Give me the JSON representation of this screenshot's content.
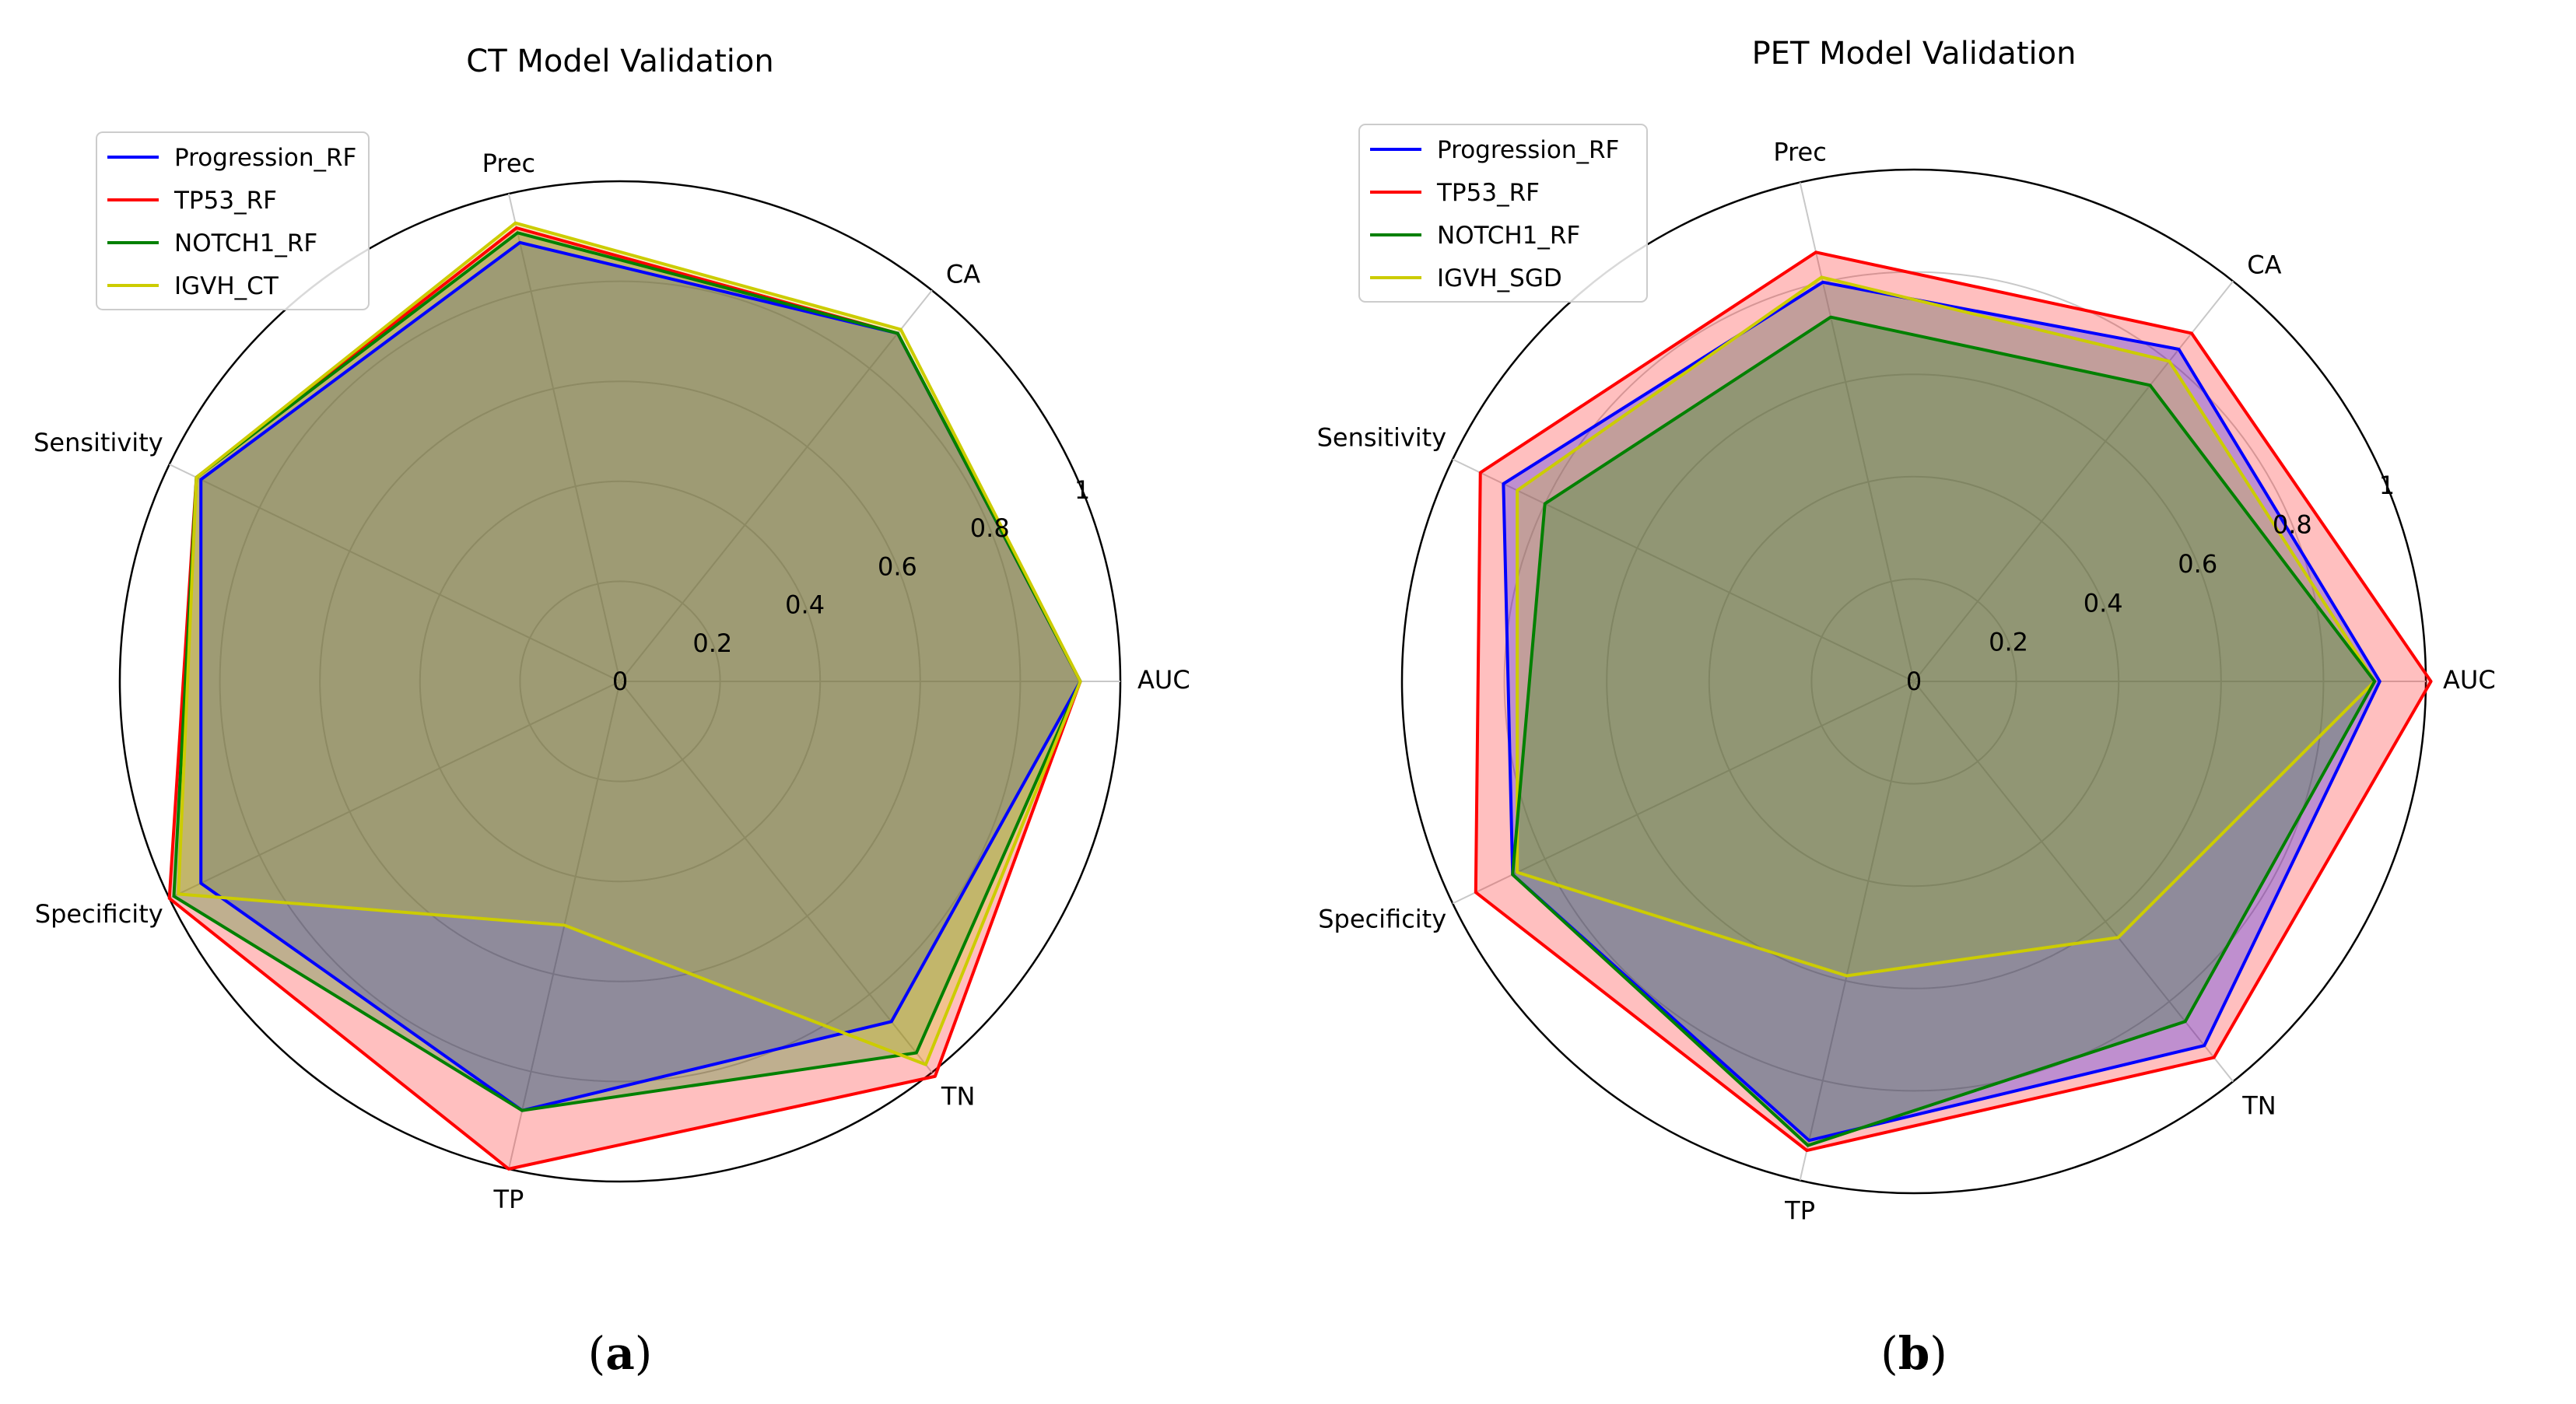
{
  "chart_data": [
    {
      "type": "radar",
      "title": "CT Model Validation",
      "axes": [
        "AUC",
        "CA",
        "Prec",
        "Sensitivity",
        "Specificity",
        "TP",
        "TN"
      ],
      "rlim": [
        0,
        1
      ],
      "radial_ticks": [
        0,
        0.2,
        0.4,
        0.6,
        0.8,
        1
      ],
      "radial_tick_labels": [
        "0",
        "0.2",
        "0.4",
        "0.6",
        "0.8",
        "1"
      ],
      "legend_location": "upper-left",
      "subfigure_label": {
        "open": "(",
        "letter": "a",
        "close": ")"
      },
      "series": [
        {
          "name": "Progression_RF",
          "color": "#0000ff",
          "values": [
            0.92,
            0.89,
            0.9,
            0.93,
            0.93,
            0.88,
            0.87
          ]
        },
        {
          "name": "TP53_RF",
          "color": "#ff0000",
          "values": [
            0.92,
            0.89,
            0.93,
            0.94,
            1.0,
            1.0,
            1.01
          ]
        },
        {
          "name": "NOTCH1_RF",
          "color": "#008000",
          "values": [
            0.92,
            0.89,
            0.92,
            0.94,
            0.99,
            0.88,
            0.95
          ]
        },
        {
          "name": "IGVH_CT",
          "color": "#cccc00",
          "values": [
            0.92,
            0.9,
            0.94,
            0.94,
            0.98,
            0.5,
            0.98
          ]
        }
      ]
    },
    {
      "type": "radar",
      "title": "PET Model Validation",
      "axes": [
        "AUC",
        "CA",
        "Prec",
        "Sensitivity",
        "Specificity",
        "TP",
        "TN"
      ],
      "rlim": [
        0,
        1
      ],
      "radial_ticks": [
        0,
        0.2,
        0.4,
        0.6,
        0.8,
        1
      ],
      "radial_tick_labels": [
        "0",
        "0.2",
        "0.4",
        "0.6",
        "0.8",
        "1"
      ],
      "legend_location": "upper-left",
      "subfigure_label": {
        "open": "(",
        "letter": "b",
        "close": ")"
      },
      "series": [
        {
          "name": "Progression_RF",
          "color": "#0000ff",
          "values": [
            0.91,
            0.83,
            0.8,
            0.89,
            0.87,
            0.92,
            0.91
          ]
        },
        {
          "name": "TP53_RF",
          "color": "#ff0000",
          "values": [
            1.01,
            0.87,
            0.86,
            0.94,
            0.95,
            0.94,
            0.94
          ]
        },
        {
          "name": "NOTCH1_RF",
          "color": "#008000",
          "values": [
            0.9,
            0.74,
            0.73,
            0.8,
            0.87,
            0.93,
            0.85
          ]
        },
        {
          "name": "IGVH_SGD",
          "color": "#cccc00",
          "values": [
            0.9,
            0.8,
            0.81,
            0.86,
            0.86,
            0.59,
            0.64
          ]
        }
      ]
    }
  ]
}
